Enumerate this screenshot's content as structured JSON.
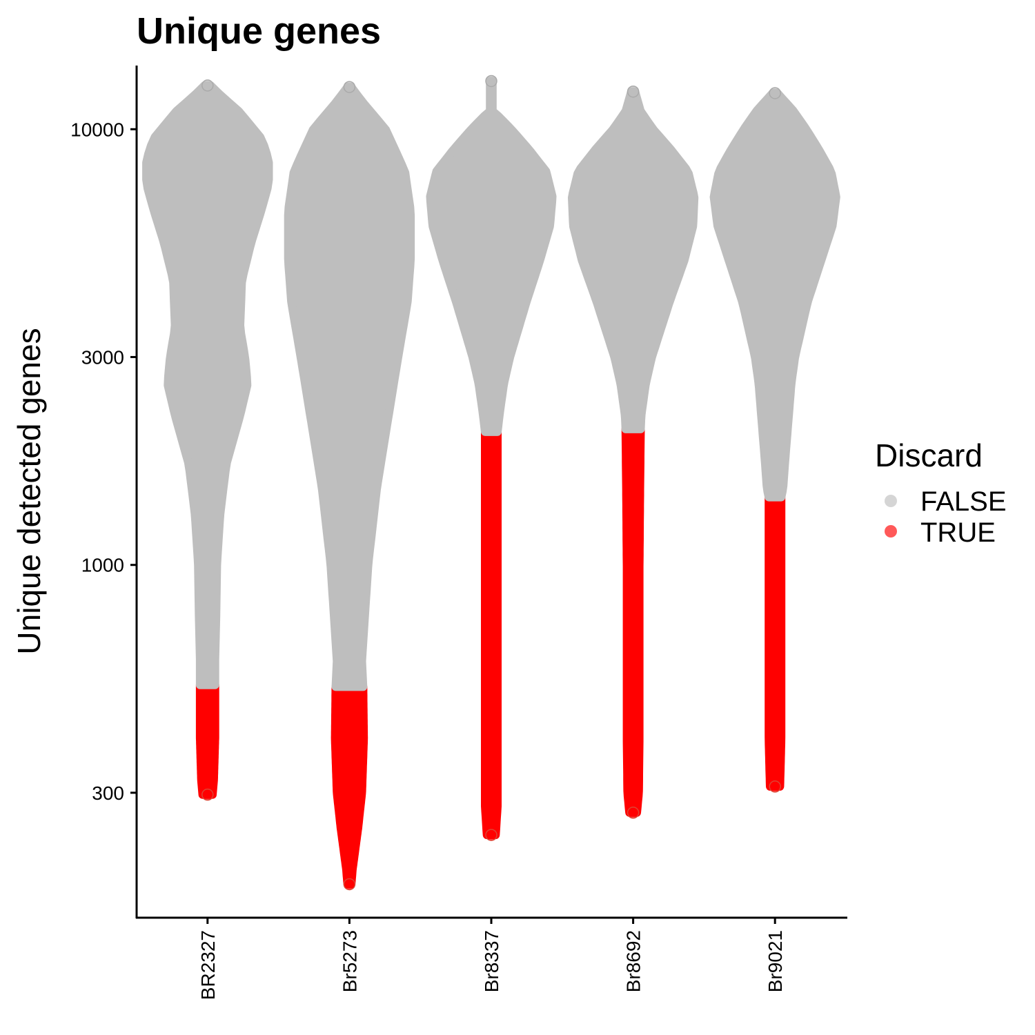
{
  "chart_data": {
    "type": "violin",
    "title": "Unique genes",
    "xlabel": "",
    "ylabel": "Unique detected genes",
    "y_scale": "log10",
    "ylim": [
      155,
      14000
    ],
    "yticks": [
      300,
      1000,
      3000,
      10000
    ],
    "ytick_labels": [
      "300",
      "1000",
      "3000",
      "10000"
    ],
    "categories": [
      "BR2327",
      "Br5273",
      "Br8337",
      "Br8692",
      "Br9021"
    ],
    "legend": {
      "title": "Discard",
      "position": "right",
      "entries": [
        {
          "label": "FALSE",
          "color": "#bebebe"
        },
        {
          "label": "TRUE",
          "color": "#ff0000"
        }
      ]
    },
    "colors": {
      "keep": "#bebebe",
      "discard": "#ff0000",
      "axis": "#000000"
    },
    "groups": [
      {
        "sample": "BR2327",
        "min": 297,
        "max": 12600,
        "discard_threshold": 530,
        "density_profile": [
          [
            297,
            0.08
          ],
          [
            320,
            0.1
          ],
          [
            400,
            0.12
          ],
          [
            530,
            0.12
          ],
          [
            600,
            0.12
          ],
          [
            800,
            0.14
          ],
          [
            1000,
            0.15
          ],
          [
            1300,
            0.2
          ],
          [
            1700,
            0.3
          ],
          [
            2200,
            0.52
          ],
          [
            2600,
            0.64
          ],
          [
            3000,
            0.6
          ],
          [
            3500,
            0.52
          ],
          [
            4500,
            0.55
          ],
          [
            5500,
            0.7
          ],
          [
            6500,
            0.86
          ],
          [
            7500,
            0.98
          ],
          [
            8500,
            0.98
          ],
          [
            9500,
            0.87
          ],
          [
            11000,
            0.5
          ],
          [
            12000,
            0.2
          ],
          [
            12600,
            0.05
          ]
        ]
      },
      {
        "sample": "Br5273",
        "min": 185,
        "max": 12500,
        "discard_threshold": 525,
        "density_profile": [
          [
            185,
            0.03
          ],
          [
            200,
            0.05
          ],
          [
            250,
            0.14
          ],
          [
            300,
            0.2
          ],
          [
            400,
            0.23
          ],
          [
            525,
            0.22
          ],
          [
            600,
            0.2
          ],
          [
            1000,
            0.3
          ],
          [
            1500,
            0.44
          ],
          [
            2000,
            0.58
          ],
          [
            3000,
            0.78
          ],
          [
            4000,
            0.93
          ],
          [
            5000,
            0.98
          ],
          [
            6500,
            0.98
          ],
          [
            8000,
            0.89
          ],
          [
            10000,
            0.58
          ],
          [
            11500,
            0.22
          ],
          [
            12500,
            0.03
          ]
        ]
      },
      {
        "sample": "Br8337",
        "min": 240,
        "max": 12900,
        "discard_threshold": 2020,
        "density_profile": [
          [
            240,
            0.07
          ],
          [
            280,
            0.1
          ],
          [
            300,
            0.1
          ],
          [
            500,
            0.1
          ],
          [
            1000,
            0.1
          ],
          [
            1500,
            0.1
          ],
          [
            2020,
            0.1
          ],
          [
            2200,
            0.13
          ],
          [
            2600,
            0.2
          ],
          [
            3000,
            0.3
          ],
          [
            4000,
            0.56
          ],
          [
            5000,
            0.78
          ],
          [
            6000,
            0.94
          ],
          [
            7000,
            0.98
          ],
          [
            8000,
            0.88
          ],
          [
            9000,
            0.6
          ],
          [
            10000,
            0.32
          ],
          [
            10700,
            0.12
          ],
          [
            11000,
            0.02
          ],
          [
            12900,
            0.02
          ]
        ]
      },
      {
        "sample": "Br8692",
        "min": 270,
        "max": 12200,
        "discard_threshold": 2050,
        "density_profile": [
          [
            270,
            0.06
          ],
          [
            300,
            0.09
          ],
          [
            400,
            0.1
          ],
          [
            500,
            0.1
          ],
          [
            1000,
            0.1
          ],
          [
            1500,
            0.11
          ],
          [
            2050,
            0.12
          ],
          [
            2200,
            0.13
          ],
          [
            2600,
            0.2
          ],
          [
            3000,
            0.3
          ],
          [
            4000,
            0.58
          ],
          [
            5000,
            0.82
          ],
          [
            6000,
            0.96
          ],
          [
            7000,
            0.98
          ],
          [
            8000,
            0.88
          ],
          [
            9000,
            0.6
          ],
          [
            10000,
            0.32
          ],
          [
            11000,
            0.12
          ],
          [
            12200,
            0.03
          ]
        ]
      },
      {
        "sample": "Br9021",
        "min": 310,
        "max": 12100,
        "discard_threshold": 1430,
        "density_profile": [
          [
            310,
            0.08
          ],
          [
            400,
            0.1
          ],
          [
            600,
            0.1
          ],
          [
            1000,
            0.1
          ],
          [
            1430,
            0.1
          ],
          [
            1500,
            0.13
          ],
          [
            1800,
            0.17
          ],
          [
            2200,
            0.22
          ],
          [
            2600,
            0.26
          ],
          [
            3000,
            0.32
          ],
          [
            4000,
            0.52
          ],
          [
            5000,
            0.74
          ],
          [
            6000,
            0.92
          ],
          [
            7000,
            0.98
          ],
          [
            8000,
            0.9
          ],
          [
            9000,
            0.7
          ],
          [
            10000,
            0.5
          ],
          [
            11000,
            0.3
          ],
          [
            12100,
            0.04
          ]
        ]
      }
    ]
  }
}
